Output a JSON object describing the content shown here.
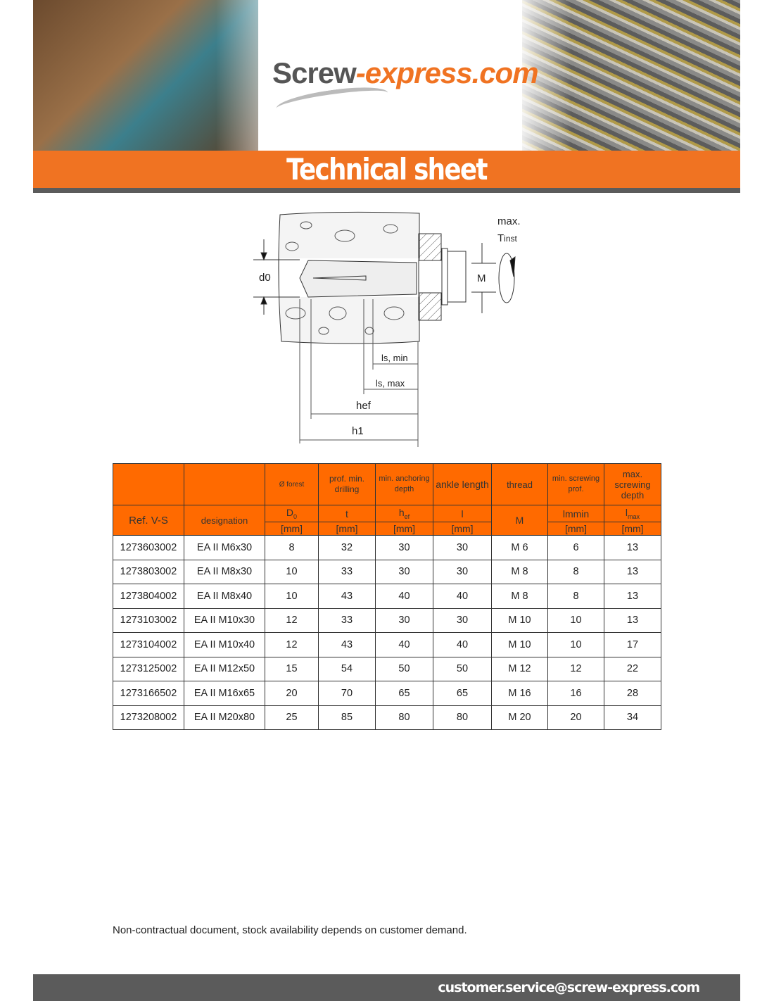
{
  "logo": {
    "part1": "Screw",
    "part2": "-express.com"
  },
  "banner_title": "Technical sheet",
  "diagram": {
    "d0": "d0",
    "M": "M",
    "torque_max": "max.",
    "torque": "T",
    "torque_sub": "inst",
    "ls_min": "ls, min",
    "ls_max": "ls, max",
    "hef": "hef",
    "h1": "h1"
  },
  "table": {
    "header1": [
      "",
      "",
      "Ø forest",
      "prof. min. drilling",
      "min. anchoring depth",
      "ankle length",
      "thread",
      "min. screwing prof.",
      "max. screwing depth"
    ],
    "header2": {
      "ref": "Ref. V-S",
      "designation": "designation",
      "d0": "D",
      "d0_sub": "0",
      "t": "t",
      "hef": "h",
      "hef_sub": "ef",
      "l": "l",
      "m": "M",
      "lmin": "lmmin",
      "lmax": "l",
      "lmax_sub": "max"
    },
    "unit": "[mm]",
    "rows": [
      [
        "1273603002",
        "EA II M6x30",
        "8",
        "32",
        "30",
        "30",
        "M 6",
        "6",
        "13"
      ],
      [
        "1273803002",
        "EA II M8x30",
        "10",
        "33",
        "30",
        "30",
        "M 8",
        "8",
        "13"
      ],
      [
        "1273804002",
        "EA II M8x40",
        "10",
        "43",
        "40",
        "40",
        "M 8",
        "8",
        "13"
      ],
      [
        "1273103002",
        "EA II M10x30",
        "12",
        "33",
        "30",
        "30",
        "M 10",
        "10",
        "13"
      ],
      [
        "1273104002",
        "EA II M10x40",
        "12",
        "43",
        "40",
        "40",
        "M 10",
        "10",
        "17"
      ],
      [
        "1273125002",
        "EA II M12x50",
        "15",
        "54",
        "50",
        "50",
        "M 12",
        "12",
        "22"
      ],
      [
        "1273166502",
        "EA II M16x65",
        "20",
        "70",
        "65",
        "65",
        "M 16",
        "16",
        "28"
      ],
      [
        "1273208002",
        "EA II M20x80",
        "25",
        "85",
        "80",
        "80",
        "M 20",
        "20",
        "34"
      ]
    ]
  },
  "note": "Non-contractual document, stock availability depends on customer demand.",
  "footer_email": "customer.service@screw-express.com",
  "colors": {
    "accent": "#f07322",
    "header_fill": "#ff6a00",
    "dark": "#5b5b5b"
  }
}
